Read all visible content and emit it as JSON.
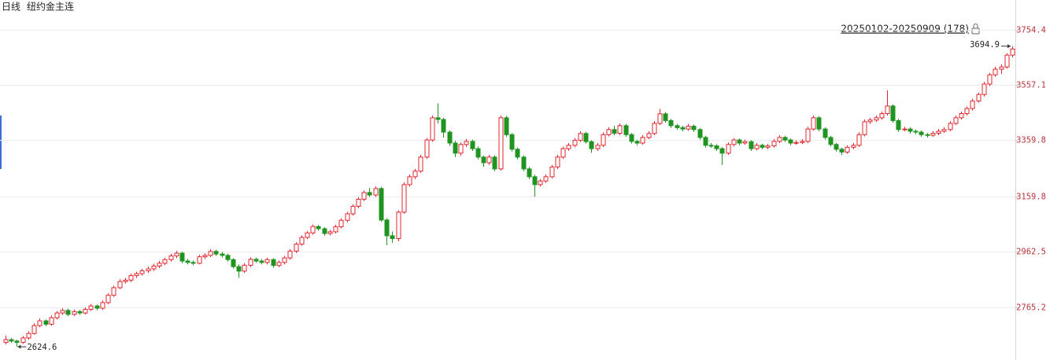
{
  "chart_data": {
    "type": "candlestick",
    "period": "日线",
    "title": "纽约金主连",
    "range": "20250102-20250909 (178)",
    "up_color": "#e0262e",
    "down_color": "#1f9421",
    "grid": true,
    "ylim": [
      2577.5,
      3859.4
    ],
    "yticks": [
      3754.4,
      3557.1,
      3359.8,
      3159.8,
      2962.5,
      2765.2
    ],
    "high_index": 177,
    "low_index": 2,
    "candles": [
      [
        2640,
        2665,
        2633,
        2650
      ],
      [
        2650,
        2656,
        2638,
        2645
      ],
      [
        2645,
        2650,
        2624.6,
        2640
      ],
      [
        2640,
        2663,
        2635,
        2656
      ],
      [
        2656,
        2680,
        2650,
        2672
      ],
      [
        2672,
        2708,
        2668,
        2700
      ],
      [
        2700,
        2725,
        2694,
        2717
      ],
      [
        2717,
        2722,
        2698,
        2705
      ],
      [
        2705,
        2736,
        2700,
        2728
      ],
      [
        2728,
        2752,
        2722,
        2745
      ],
      [
        2745,
        2762,
        2738,
        2754
      ],
      [
        2754,
        2760,
        2733,
        2740
      ],
      [
        2740,
        2757,
        2734,
        2750
      ],
      [
        2750,
        2756,
        2738,
        2745
      ],
      [
        2745,
        2765,
        2740,
        2758
      ],
      [
        2758,
        2777,
        2752,
        2770
      ],
      [
        2770,
        2775,
        2755,
        2762
      ],
      [
        2762,
        2790,
        2756,
        2782
      ],
      [
        2782,
        2815,
        2776,
        2808
      ],
      [
        2808,
        2842,
        2802,
        2835
      ],
      [
        2835,
        2865,
        2830,
        2857
      ],
      [
        2857,
        2870,
        2850,
        2862
      ],
      [
        2862,
        2885,
        2855,
        2878
      ],
      [
        2878,
        2892,
        2870,
        2885
      ],
      [
        2885,
        2902,
        2878,
        2895
      ],
      [
        2895,
        2910,
        2888,
        2902
      ],
      [
        2902,
        2920,
        2895,
        2912
      ],
      [
        2912,
        2930,
        2905,
        2922
      ],
      [
        2922,
        2942,
        2915,
        2935
      ],
      [
        2935,
        2956,
        2928,
        2948
      ],
      [
        2948,
        2966,
        2940,
        2958
      ],
      [
        2958,
        2963,
        2922,
        2930
      ],
      [
        2930,
        2938,
        2918,
        2925
      ],
      [
        2925,
        2932,
        2915,
        2922
      ],
      [
        2922,
        2952,
        2918,
        2945
      ],
      [
        2945,
        2957,
        2938,
        2950
      ],
      [
        2950,
        2972,
        2944,
        2964
      ],
      [
        2964,
        2970,
        2948,
        2955
      ],
      [
        2955,
        2962,
        2942,
        2950
      ],
      [
        2950,
        2956,
        2928,
        2935
      ],
      [
        2935,
        2940,
        2903,
        2910
      ],
      [
        2910,
        2918,
        2870,
        2894
      ],
      [
        2894,
        2922,
        2888,
        2915
      ],
      [
        2915,
        2943,
        2908,
        2936
      ],
      [
        2936,
        2942,
        2923,
        2930
      ],
      [
        2930,
        2937,
        2918,
        2925
      ],
      [
        2925,
        2942,
        2918,
        2935
      ],
      [
        2935,
        2940,
        2906,
        2914
      ],
      [
        2914,
        2932,
        2908,
        2925
      ],
      [
        2925,
        2948,
        2918,
        2941
      ],
      [
        2941,
        2972,
        2935,
        2965
      ],
      [
        2965,
        2997,
        2958,
        2990
      ],
      [
        2990,
        3021,
        2984,
        3014
      ],
      [
        3014,
        3037,
        3008,
        3030
      ],
      [
        3030,
        3060,
        3024,
        3053
      ],
      [
        3053,
        3058,
        3038,
        3045
      ],
      [
        3045,
        3050,
        3020,
        3028
      ],
      [
        3028,
        3041,
        3021,
        3034
      ],
      [
        3034,
        3059,
        3028,
        3052
      ],
      [
        3052,
        3082,
        3046,
        3075
      ],
      [
        3075,
        3105,
        3068,
        3098
      ],
      [
        3098,
        3132,
        3092,
        3125
      ],
      [
        3125,
        3157,
        3118,
        3150
      ],
      [
        3150,
        3181,
        3143,
        3174
      ],
      [
        3174,
        3190,
        3158,
        3165
      ],
      [
        3165,
        3196,
        3158,
        3188
      ],
      [
        3188,
        3194,
        3070,
        3076
      ],
      [
        3076,
        3082,
        2986,
        3020
      ],
      [
        3020,
        3035,
        2995,
        3010
      ],
      [
        3010,
        3110,
        3000,
        3104
      ],
      [
        3104,
        3210,
        3098,
        3202
      ],
      [
        3202,
        3238,
        3195,
        3230
      ],
      [
        3230,
        3258,
        3222,
        3250
      ],
      [
        3250,
        3308,
        3244,
        3300
      ],
      [
        3300,
        3368,
        3294,
        3361
      ],
      [
        3361,
        3448,
        3355,
        3440
      ],
      [
        3440,
        3491,
        3420,
        3434
      ],
      [
        3434,
        3440,
        3370,
        3389
      ],
      [
        3389,
        3395,
        3340,
        3350
      ],
      [
        3350,
        3358,
        3300,
        3314
      ],
      [
        3314,
        3352,
        3305,
        3345
      ],
      [
        3345,
        3365,
        3336,
        3356
      ],
      [
        3356,
        3362,
        3322,
        3330
      ],
      [
        3330,
        3338,
        3292,
        3300
      ],
      [
        3300,
        3305,
        3265,
        3280
      ],
      [
        3280,
        3308,
        3272,
        3300
      ],
      [
        3300,
        3306,
        3250,
        3258
      ],
      [
        3258,
        3448,
        3252,
        3440
      ],
      [
        3440,
        3447,
        3372,
        3380
      ],
      [
        3380,
        3386,
        3320,
        3328
      ],
      [
        3328,
        3334,
        3292,
        3300
      ],
      [
        3300,
        3306,
        3250,
        3258
      ],
      [
        3258,
        3265,
        3222,
        3230
      ],
      [
        3230,
        3237,
        3159,
        3202
      ],
      [
        3202,
        3222,
        3195,
        3215
      ],
      [
        3215,
        3238,
        3208,
        3230
      ],
      [
        3230,
        3272,
        3224,
        3265
      ],
      [
        3265,
        3308,
        3258,
        3300
      ],
      [
        3300,
        3337,
        3294,
        3330
      ],
      [
        3330,
        3350,
        3322,
        3342
      ],
      [
        3342,
        3368,
        3335,
        3360
      ],
      [
        3360,
        3392,
        3354,
        3384
      ],
      [
        3384,
        3390,
        3348,
        3355
      ],
      [
        3355,
        3360,
        3315,
        3330
      ],
      [
        3330,
        3350,
        3322,
        3342
      ],
      [
        3342,
        3388,
        3336,
        3380
      ],
      [
        3380,
        3406,
        3374,
        3398
      ],
      [
        3398,
        3412,
        3378,
        3385
      ],
      [
        3385,
        3420,
        3378,
        3412
      ],
      [
        3412,
        3418,
        3372,
        3380
      ],
      [
        3380,
        3386,
        3348,
        3356
      ],
      [
        3356,
        3362,
        3342,
        3350
      ],
      [
        3350,
        3378,
        3344,
        3370
      ],
      [
        3370,
        3392,
        3364,
        3384
      ],
      [
        3384,
        3428,
        3378,
        3420
      ],
      [
        3420,
        3472,
        3414,
        3454
      ],
      [
        3454,
        3460,
        3422,
        3430
      ],
      [
        3430,
        3436,
        3404,
        3412
      ],
      [
        3412,
        3418,
        3398,
        3405
      ],
      [
        3405,
        3412,
        3392,
        3400
      ],
      [
        3400,
        3418,
        3394,
        3410
      ],
      [
        3410,
        3416,
        3390,
        3398
      ],
      [
        3398,
        3404,
        3362,
        3370
      ],
      [
        3370,
        3376,
        3334,
        3342
      ],
      [
        3342,
        3350,
        3333,
        3340
      ],
      [
        3340,
        3346,
        3322,
        3330
      ],
      [
        3330,
        3336,
        3272,
        3314
      ],
      [
        3314,
        3352,
        3308,
        3345
      ],
      [
        3345,
        3368,
        3338,
        3361
      ],
      [
        3361,
        3366,
        3342,
        3350
      ],
      [
        3350,
        3362,
        3344,
        3355
      ],
      [
        3355,
        3360,
        3322,
        3330
      ],
      [
        3330,
        3350,
        3324,
        3342
      ],
      [
        3342,
        3348,
        3328,
        3335
      ],
      [
        3335,
        3347,
        3328,
        3340
      ],
      [
        3340,
        3364,
        3334,
        3356
      ],
      [
        3356,
        3378,
        3350,
        3370
      ],
      [
        3370,
        3376,
        3354,
        3361
      ],
      [
        3361,
        3366,
        3342,
        3350
      ],
      [
        3350,
        3360,
        3344,
        3352
      ],
      [
        3352,
        3364,
        3346,
        3356
      ],
      [
        3356,
        3408,
        3350,
        3400
      ],
      [
        3400,
        3448,
        3394,
        3440
      ],
      [
        3440,
        3446,
        3392,
        3400
      ],
      [
        3400,
        3406,
        3362,
        3370
      ],
      [
        3370,
        3376,
        3338,
        3345
      ],
      [
        3345,
        3350,
        3320,
        3328
      ],
      [
        3328,
        3334,
        3308,
        3318
      ],
      [
        3318,
        3342,
        3312,
        3335
      ],
      [
        3335,
        3350,
        3328,
        3342
      ],
      [
        3342,
        3388,
        3336,
        3380
      ],
      [
        3380,
        3434,
        3374,
        3426
      ],
      [
        3426,
        3440,
        3418,
        3432
      ],
      [
        3432,
        3448,
        3425,
        3440
      ],
      [
        3440,
        3462,
        3433,
        3455
      ],
      [
        3455,
        3538,
        3448,
        3482
      ],
      [
        3482,
        3488,
        3422,
        3430
      ],
      [
        3430,
        3436,
        3390,
        3398
      ],
      [
        3398,
        3408,
        3392,
        3400
      ],
      [
        3400,
        3406,
        3384,
        3392
      ],
      [
        3392,
        3398,
        3382,
        3389
      ],
      [
        3389,
        3395,
        3372,
        3380
      ],
      [
        3380,
        3386,
        3370,
        3378
      ],
      [
        3378,
        3392,
        3372,
        3385
      ],
      [
        3385,
        3400,
        3378,
        3392
      ],
      [
        3392,
        3406,
        3386,
        3398
      ],
      [
        3398,
        3428,
        3392,
        3420
      ],
      [
        3420,
        3448,
        3414,
        3440
      ],
      [
        3440,
        3462,
        3434,
        3455
      ],
      [
        3455,
        3480,
        3448,
        3473
      ],
      [
        3473,
        3508,
        3466,
        3500
      ],
      [
        3500,
        3530,
        3494,
        3523
      ],
      [
        3523,
        3568,
        3516,
        3560
      ],
      [
        3560,
        3600,
        3553,
        3593
      ],
      [
        3593,
        3622,
        3586,
        3613
      ],
      [
        3613,
        3630,
        3596,
        3621
      ],
      [
        3621,
        3670,
        3615,
        3663
      ],
      [
        3663,
        3694.9,
        3655,
        3685
      ]
    ]
  }
}
